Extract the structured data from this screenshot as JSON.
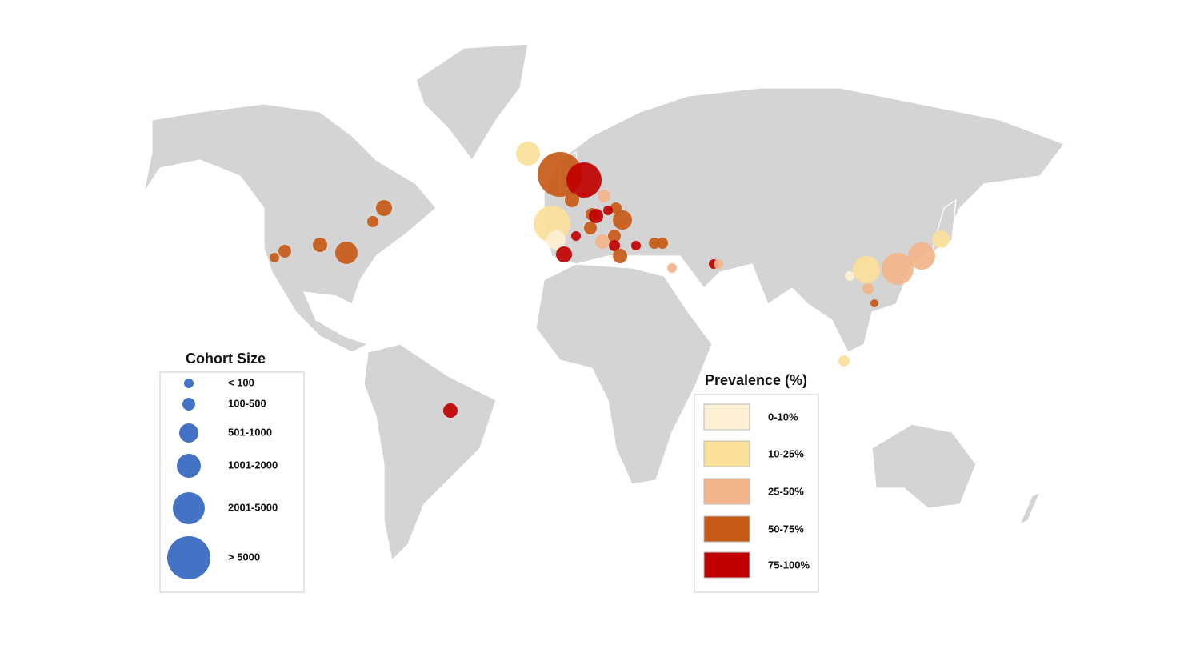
{
  "cohort_legend": {
    "title": "Cohort Size",
    "items": [
      "< 100",
      "100-500",
      "501-1000",
      "1001-2000",
      "2001-5000",
      "> 5000"
    ]
  },
  "prevalence_legend": {
    "title": "Prevalence (%)",
    "items": [
      {
        "label": "0-10%",
        "color": "#fdefd3"
      },
      {
        "label": "10-25%",
        "color": "#fbe09a"
      },
      {
        "label": "25-50%",
        "color": "#f2b48a"
      },
      {
        "label": "50-75%",
        "color": "#c65a17"
      },
      {
        "label": "75-100%",
        "color": "#c00000"
      }
    ]
  }
}
